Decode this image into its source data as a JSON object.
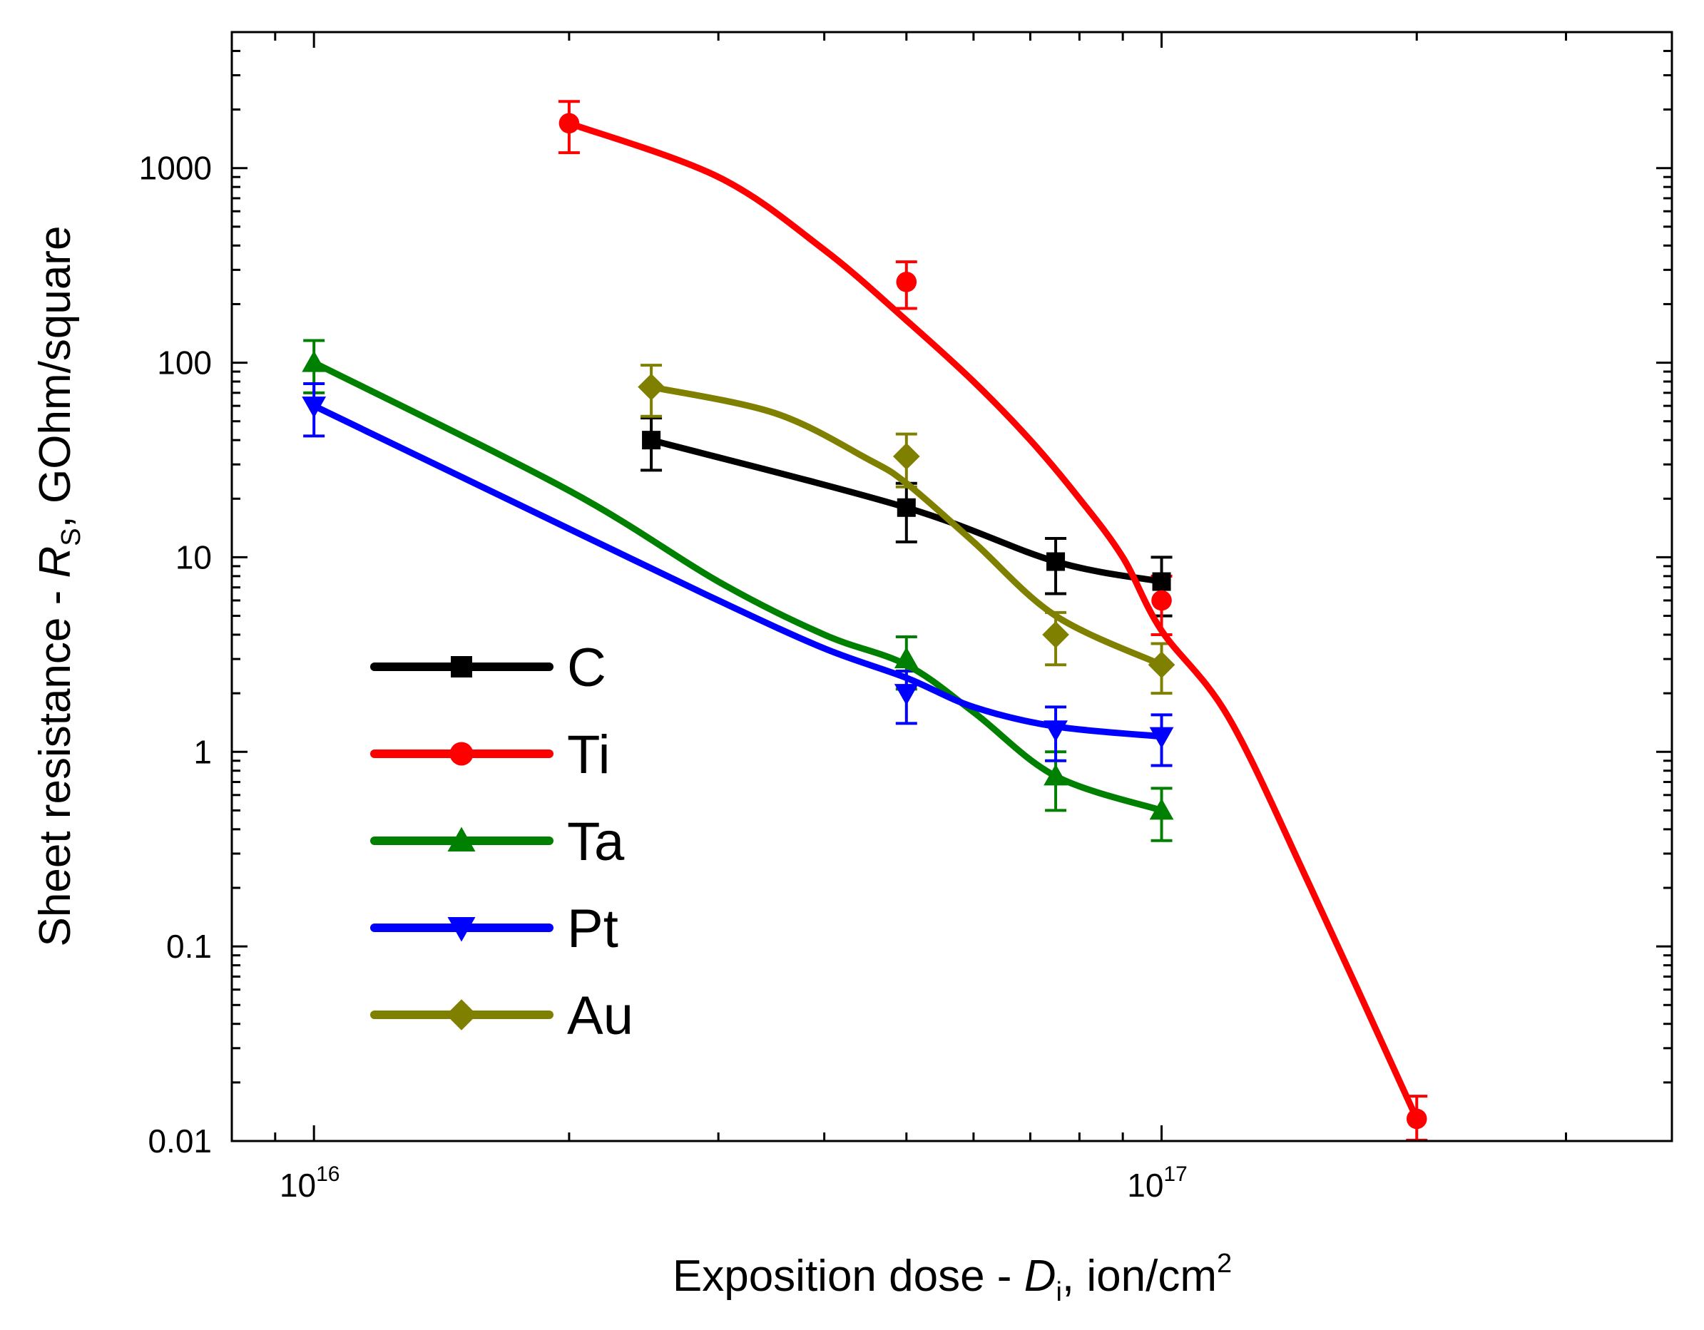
{
  "chart_data": {
    "type": "line",
    "x_scale": "log",
    "y_scale": "log",
    "xlim": [
      8000000000000000,
      400000000000000000
    ],
    "ylim": [
      0.01,
      5000
    ],
    "xlabel": {
      "prefix": "Exposition dose - ",
      "var": "D",
      "sub": "i",
      "suffix": ", ion/cm",
      "sup": "2"
    },
    "ylabel": {
      "prefix": "Sheet resistance - ",
      "var": "R",
      "sub": "S",
      "suffix": ", GOhm/square"
    },
    "x_ticks": [
      {
        "base": "10",
        "exp": "16",
        "value": 10000000000000000
      },
      {
        "base": "10",
        "exp": "17",
        "value": 100000000000000000
      }
    ],
    "y_ticks": [
      {
        "label": "0.01",
        "value": 0.01
      },
      {
        "label": "0.1",
        "value": 0.1
      },
      {
        "label": "1",
        "value": 1
      },
      {
        "label": "10",
        "value": 10
      },
      {
        "label": "100",
        "value": 100
      },
      {
        "label": "1000",
        "value": 1000
      }
    ],
    "legend_position": "bottom-left",
    "series": [
      {
        "name": "C",
        "color": "#000000",
        "marker": "square",
        "x": [
          25000000000000000,
          50000000000000000,
          75000000000000000,
          100000000000000000
        ],
        "y": [
          40,
          18,
          9.5,
          7.5
        ],
        "err": [
          12,
          6,
          3,
          2.5
        ],
        "curve_x": [
          25000000000000000,
          50000000000000000,
          75000000000000000,
          100000000000000000
        ],
        "curve_y": [
          40,
          18,
          9.5,
          7.5
        ]
      },
      {
        "name": "Ti",
        "color": "#ff0000",
        "marker": "circle",
        "x": [
          20000000000000000,
          50000000000000000,
          100000000000000000,
          200000000000000000
        ],
        "y": [
          1700,
          260,
          6,
          0.013
        ],
        "err": [
          500,
          70,
          2,
          0.004
        ],
        "curve_x": [
          20000000000000000,
          30000000000000000,
          40000000000000000,
          50000000000000000,
          60000000000000000,
          70000000000000000,
          80000000000000000,
          90000000000000000,
          100000000000000000,
          120000000000000000,
          150000000000000000,
          200000000000000000
        ],
        "curve_y": [
          1700,
          900,
          380,
          165,
          80,
          40,
          20,
          10,
          4.2,
          1.5,
          0.2,
          0.013
        ]
      },
      {
        "name": "Ta",
        "color": "#008000",
        "marker": "triangle-up",
        "x": [
          10000000000000000,
          50000000000000000,
          75000000000000000,
          100000000000000000
        ],
        "y": [
          100,
          3,
          0.75,
          0.5
        ],
        "err": [
          30,
          0.9,
          0.25,
          0.15
        ],
        "curve_x": [
          10000000000000000,
          20000000000000000,
          30000000000000000,
          40000000000000000,
          50000000000000000,
          60000000000000000,
          75000000000000000,
          100000000000000000
        ],
        "curve_y": [
          100,
          22,
          7.5,
          4,
          2.8,
          1.6,
          0.75,
          0.5
        ]
      },
      {
        "name": "Pt",
        "color": "#0000ff",
        "marker": "triangle-down",
        "x": [
          10000000000000000,
          50000000000000000,
          75000000000000000,
          100000000000000000
        ],
        "y": [
          60,
          2,
          1.3,
          1.2
        ],
        "err": [
          18,
          0.6,
          0.4,
          0.35
        ],
        "curve_x": [
          10000000000000000,
          20000000000000000,
          30000000000000000,
          40000000000000000,
          50000000000000000,
          60000000000000000,
          75000000000000000,
          100000000000000000
        ],
        "curve_y": [
          60,
          14,
          6,
          3.4,
          2.4,
          1.7,
          1.35,
          1.2
        ]
      },
      {
        "name": "Au",
        "color": "#808000",
        "marker": "diamond",
        "x": [
          25000000000000000,
          50000000000000000,
          75000000000000000,
          100000000000000000
        ],
        "y": [
          75,
          33,
          4,
          2.8
        ],
        "err": [
          22,
          10,
          1.2,
          0.8
        ],
        "curve_x": [
          25000000000000000,
          35000000000000000,
          45000000000000000,
          50000000000000000,
          60000000000000000,
          75000000000000000,
          100000000000000000
        ],
        "curve_y": [
          75,
          55,
          32,
          24,
          12,
          5,
          2.8
        ]
      }
    ]
  }
}
